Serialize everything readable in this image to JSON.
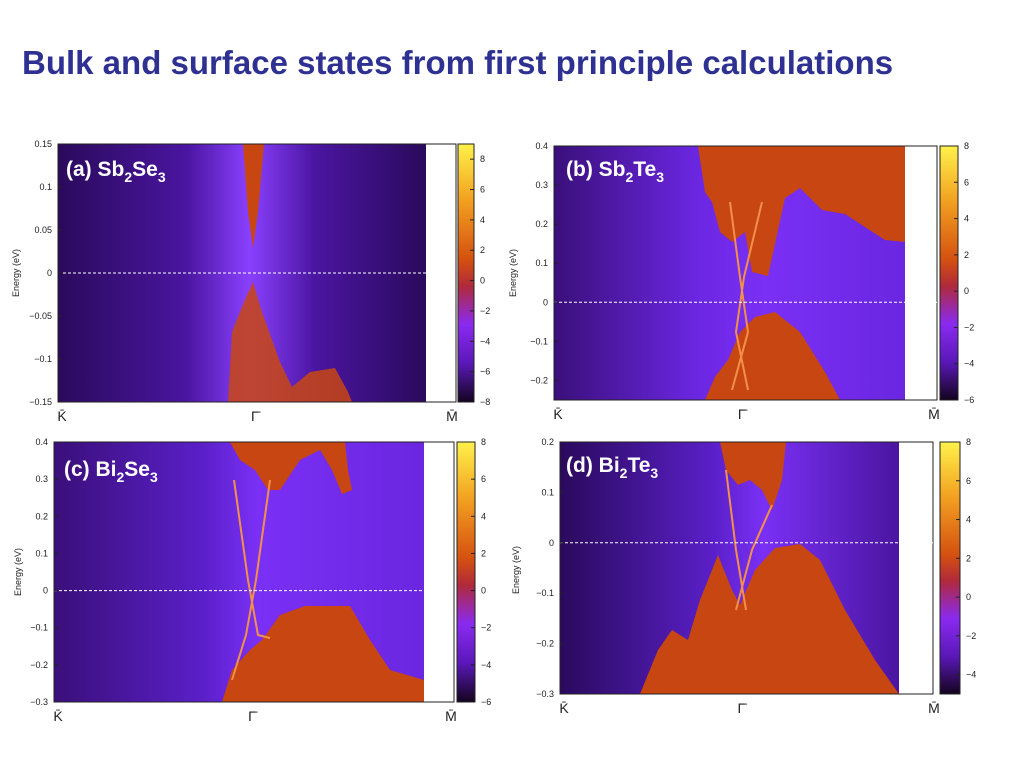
{
  "slide": {
    "title": "Bulk and surface states from first principle calculations"
  },
  "chart_data": [
    {
      "type": "heatmap",
      "panel": "a",
      "label": {
        "prefix": "(a) Sb",
        "sub1": "2",
        "mid": "Se",
        "sub2": "3"
      },
      "ylabel": "Energy (eV)",
      "ylim": [
        -0.15,
        0.15
      ],
      "yticks": [
        0.15,
        0.1,
        0.05,
        0,
        -0.05,
        -0.1,
        -0.15
      ],
      "ytick_labels": [
        "0.15",
        "0.1",
        "0.05",
        "0",
        "−0.05",
        "−0.1",
        "−0.15"
      ],
      "xtick_labels": [
        "K̄",
        "Γ̄",
        "M̄"
      ],
      "fermi_level": 0,
      "colorbar": {
        "min": -8,
        "max": 9,
        "ticks": [
          8,
          6,
          4,
          2,
          0,
          -2,
          -4,
          -6,
          -8
        ],
        "tick_labels": [
          "8",
          "6",
          "4",
          "2",
          "0",
          "−2",
          "−4",
          "−6",
          "−8"
        ]
      },
      "colors": {
        "background": "#2e0b63",
        "mid": "#7b2cf5",
        "bulk": "#cf4a12",
        "fermi": "#ffffff"
      }
    },
    {
      "type": "heatmap",
      "panel": "b",
      "label": {
        "prefix": "(b) Sb",
        "sub1": "2",
        "mid": "Te",
        "sub2": "3"
      },
      "ylabel": "Energy (eV)",
      "ylim": [
        -0.25,
        0.4
      ],
      "yticks": [
        0.4,
        0.3,
        0.2,
        0.1,
        0,
        -0.1,
        -0.2
      ],
      "ytick_labels": [
        "0.4",
        "0.3",
        "0.2",
        "0.1",
        "0",
        "−0.1",
        "−0.2"
      ],
      "xtick_labels": [
        "K̄",
        "Γ̄",
        "M̄"
      ],
      "fermi_level": 0,
      "colorbar": {
        "min": -6,
        "max": 8,
        "ticks": [
          8,
          6,
          4,
          2,
          0,
          -2,
          -4,
          -6
        ],
        "tick_labels": [
          "8",
          "6",
          "4",
          "2",
          "0",
          "−2",
          "−4",
          "−6"
        ]
      },
      "colors": {
        "background": "#2e0b63",
        "mid": "#7b2cf5",
        "bulk": "#cf4a12",
        "fermi": "#ffffff"
      }
    },
    {
      "type": "heatmap",
      "panel": "c",
      "label": {
        "prefix": "(c) Bi",
        "sub1": "2",
        "mid": "Se",
        "sub2": "3"
      },
      "ylabel": "Energy (eV)",
      "ylim": [
        -0.3,
        0.4
      ],
      "yticks": [
        0.4,
        0.3,
        0.2,
        0.1,
        0,
        -0.1,
        -0.2,
        -0.3
      ],
      "ytick_labels": [
        "0.4",
        "0.3",
        "0.2",
        "0.1",
        "0",
        "−0.1",
        "−0.2",
        "−0.3"
      ],
      "xtick_labels": [
        "K̄",
        "Γ̄",
        "M̄"
      ],
      "fermi_level": 0,
      "colorbar": {
        "min": -6,
        "max": 8,
        "ticks": [
          8,
          6,
          4,
          2,
          0,
          -2,
          -4,
          -6
        ],
        "tick_labels": [
          "8",
          "6",
          "4",
          "2",
          "0",
          "−2",
          "−4",
          "−6"
        ]
      },
      "colors": {
        "background": "#2e0b63",
        "mid": "#7b2cf5",
        "bulk": "#cf4a12",
        "fermi": "#ffffff"
      }
    },
    {
      "type": "heatmap",
      "panel": "d",
      "label": {
        "prefix": "(d) Bi",
        "sub1": "2",
        "mid": "Te",
        "sub2": "3"
      },
      "ylabel": "Energy (eV)",
      "ylim": [
        -0.3,
        0.2
      ],
      "yticks": [
        0.2,
        0.1,
        0,
        -0.1,
        -0.2,
        -0.3
      ],
      "ytick_labels": [
        "0.2",
        "0.1",
        "0",
        "−0.1",
        "−0.2",
        "−0.3"
      ],
      "xtick_labels": [
        "K̄",
        "Γ̄",
        "M̄"
      ],
      "fermi_level": 0,
      "colorbar": {
        "min": -5,
        "max": 8,
        "ticks": [
          8,
          6,
          4,
          2,
          0,
          -2,
          -4
        ],
        "tick_labels": [
          "8",
          "6",
          "4",
          "2",
          "0",
          "−2",
          "−4"
        ]
      },
      "colors": {
        "background": "#2e0b63",
        "mid": "#7b2cf5",
        "bulk": "#cf4a12",
        "fermi": "#ffffff"
      }
    }
  ]
}
